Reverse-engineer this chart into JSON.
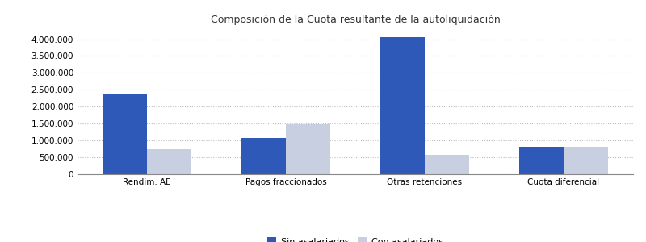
{
  "title": "Composición de la Cuota resultante de la autoliquidación",
  "categories": [
    "Rendim. AE",
    "Pagos fraccionados",
    "Otras retenciones",
    "Cuota diferencial"
  ],
  "series": {
    "Sin asalariados": [
      2375000,
      1075000,
      4050000,
      820000
    ],
    "Con asalariados": [
      750000,
      1480000,
      570000,
      820000
    ]
  },
  "bar_colors": {
    "Sin asalariados": "#2e59b8",
    "Con asalariados": "#c8cfe0"
  },
  "legend_labels": [
    "Sin asalariados",
    "Con asalariados"
  ],
  "ylim": [
    0,
    4300000
  ],
  "yticks": [
    0,
    500000,
    1000000,
    1500000,
    2000000,
    2500000,
    3000000,
    3500000,
    4000000
  ],
  "bar_width": 0.32,
  "grid_linestyle": ":",
  "grid_color": "#bbbbbb",
  "background_color": "#ffffff",
  "title_fontsize": 9,
  "tick_fontsize": 7.5,
  "legend_fontsize": 8
}
